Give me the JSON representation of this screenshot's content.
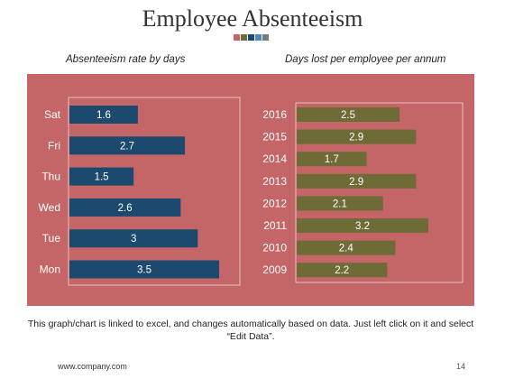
{
  "slide": {
    "title": "Employee Absenteeism",
    "square_colors": [
      "#c46567",
      "#6e6b37",
      "#1c4a6e",
      "#4a8bc2",
      "#7b7b7b"
    ],
    "note": "This graph/chart is linked to excel, and changes automatically based on data. Just left click on it and select “Edit Data”.",
    "footer_url": "www.company.com",
    "page_number": "14",
    "panel_color": "#c46567"
  },
  "chart_data": [
    {
      "type": "bar",
      "orientation": "horizontal",
      "title": "Absenteeism rate by days",
      "categories": [
        "Sat",
        "Fri",
        "Thu",
        "Wed",
        "Tue",
        "Mon"
      ],
      "values": [
        1.6,
        2.7,
        1.5,
        2.6,
        3,
        3.5
      ],
      "value_labels": [
        "1.6",
        "2.7",
        "1.5",
        "2.6",
        "3",
        "3.5"
      ],
      "xlim": [
        0,
        3.5
      ],
      "bar_color": "#1c4a6e",
      "grid": false
    },
    {
      "type": "bar",
      "orientation": "horizontal",
      "title": "Days lost per employee per annum",
      "categories": [
        "2016",
        "2015",
        "2014",
        "2013",
        "2012",
        "2011",
        "2010",
        "2009"
      ],
      "values": [
        2.5,
        2.9,
        1.7,
        2.9,
        2.1,
        3.2,
        2.4,
        2.2
      ],
      "value_labels": [
        "2.5",
        "2.9",
        "1.7",
        "2.9",
        "2.1",
        "3.2",
        "2.4",
        "2.2"
      ],
      "xlim": [
        0,
        3.2
      ],
      "bar_color": "#6e6b37",
      "grid": false
    }
  ]
}
